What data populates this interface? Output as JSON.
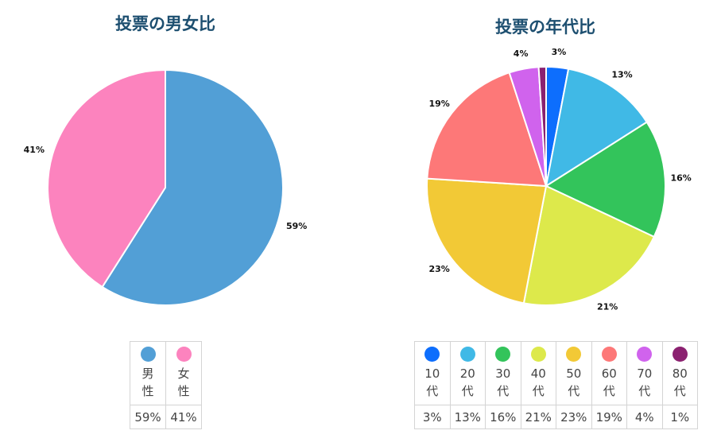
{
  "chart_data": [
    {
      "type": "pie",
      "title": "投票の男女比",
      "slices": [
        {
          "label": "男性",
          "value": 59,
          "display": "59%",
          "color": "#529fd6"
        },
        {
          "label": "女性",
          "value": 41,
          "display": "41%",
          "color": "#fc83be"
        }
      ],
      "legend": {
        "placement": "bottom",
        "entries": [
          {
            "label": "男性",
            "chars": [
              "男",
              "性"
            ],
            "value_label": "59%",
            "color": "#529fd6"
          },
          {
            "label": "女性",
            "chars": [
              "女",
              "性"
            ],
            "value_label": "41%",
            "color": "#fc83be"
          }
        ]
      }
    },
    {
      "type": "pie",
      "title": "投票の年代比",
      "slices": [
        {
          "label": "10代",
          "value": 3,
          "display": "3%",
          "color": "#0d6efd"
        },
        {
          "label": "20代",
          "value": 13,
          "display": "13%",
          "color": "#40b9e6"
        },
        {
          "label": "30代",
          "value": 16,
          "display": "16%",
          "color": "#33c45b"
        },
        {
          "label": "40代",
          "value": 21,
          "display": "21%",
          "color": "#dde94b"
        },
        {
          "label": "50代",
          "value": 23,
          "display": "23%",
          "color": "#f2c936"
        },
        {
          "label": "60代",
          "value": 19,
          "display": "19%",
          "color": "#fd7878"
        },
        {
          "label": "70代",
          "value": 4,
          "display": "4%",
          "color": "#d063ed"
        },
        {
          "label": "80代",
          "value": 1,
          "display": "",
          "color": "#8b2170"
        }
      ],
      "legend": {
        "placement": "bottom",
        "entries": [
          {
            "label": "10代",
            "chars": [
              "10",
              "代"
            ],
            "value_label": "3%",
            "color": "#0d6efd"
          },
          {
            "label": "20代",
            "chars": [
              "20",
              "代"
            ],
            "value_label": "13%",
            "color": "#40b9e6"
          },
          {
            "label": "30代",
            "chars": [
              "30",
              "代"
            ],
            "value_label": "16%",
            "color": "#33c45b"
          },
          {
            "label": "40代",
            "chars": [
              "40",
              "代"
            ],
            "value_label": "21%",
            "color": "#dde94b"
          },
          {
            "label": "50代",
            "chars": [
              "50",
              "代"
            ],
            "value_label": "23%",
            "color": "#f2c936"
          },
          {
            "label": "60代",
            "chars": [
              "60",
              "代"
            ],
            "value_label": "19%",
            "color": "#fd7878"
          },
          {
            "label": "70代",
            "chars": [
              "70",
              "代"
            ],
            "value_label": "4%",
            "color": "#d063ed"
          },
          {
            "label": "80代",
            "chars": [
              "80",
              "代"
            ],
            "value_label": "1%",
            "color": "#8b2170"
          }
        ]
      }
    }
  ]
}
